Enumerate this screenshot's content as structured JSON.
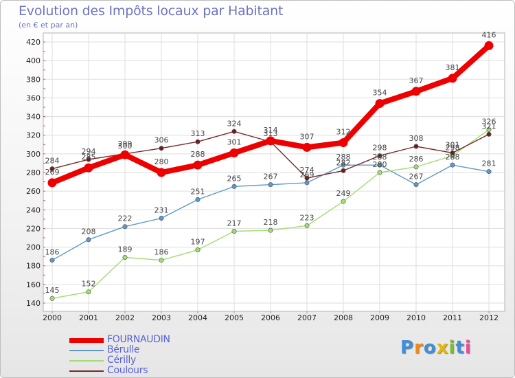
{
  "title": "Evolution des Impôts locaux par Habitant",
  "subtitle": "(en € et par an)",
  "logo": {
    "text": "Proxiti",
    "letters": [
      "P",
      "r",
      "o",
      "x",
      "i",
      "t",
      "i"
    ],
    "colors": [
      "#3f8fd8",
      "#ee8a1c",
      "#3f8fd8",
      "#e6b800",
      "#7dbb2f",
      "#3f8fd8",
      "#e44f9a"
    ]
  },
  "chart_data": {
    "type": "line",
    "title": "Evolution des Impôts locaux par Habitant",
    "subtitle": "(en € et par an)",
    "xlabel": "",
    "ylabel": "",
    "x": [
      "2000",
      "2001",
      "2002",
      "2003",
      "2004",
      "2005",
      "2006",
      "2007",
      "2008",
      "2009",
      "2010",
      "2011",
      "2012"
    ],
    "ylim": [
      140,
      420
    ],
    "yticks": [
      140,
      160,
      180,
      200,
      220,
      240,
      260,
      280,
      300,
      320,
      340,
      360,
      380,
      400,
      420
    ],
    "grid": true,
    "legend_position": "bottom-left",
    "series": [
      {
        "name": "FOURNAUDIN",
        "color": "#ee0000",
        "values": [
          269,
          285,
          299,
          280,
          288,
          301,
          314,
          307,
          312,
          354,
          367,
          381,
          416
        ]
      },
      {
        "name": "Bérulle",
        "color": "#5c98c8",
        "values": [
          186,
          208,
          222,
          231,
          251,
          265,
          267,
          269,
          288,
          288,
          267,
          288,
          281
        ]
      },
      {
        "name": "Cérilly",
        "color": "#a3dc72",
        "values": [
          145,
          152,
          189,
          186,
          197,
          217,
          218,
          223,
          249,
          280,
          286,
          298,
          326
        ]
      },
      {
        "name": "Coulours",
        "color": "#7a2a2a",
        "values": [
          284,
          294,
          300,
          306,
          313,
          324,
          313,
          274,
          282,
          298,
          308,
          301,
          321
        ]
      }
    ]
  }
}
